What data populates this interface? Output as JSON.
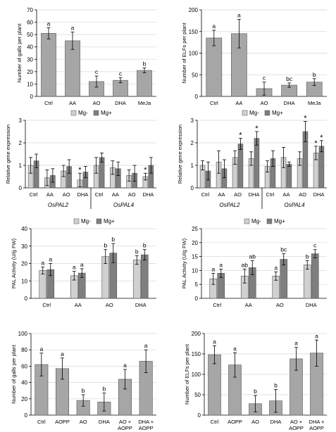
{
  "colors": {
    "bar": "#a6a6a6",
    "light": "#d0d0d0",
    "dark": "#7f7f7f",
    "axis": "#000000",
    "grid": "#d9d9d9"
  },
  "chart_data": [
    {
      "type": "bar",
      "ylabel": "Number of galls per plant",
      "categories": [
        "Ctrl",
        "AA",
        "AO",
        "DHA",
        "MeJa"
      ],
      "ylim": [
        0,
        70
      ],
      "yticks": [
        0,
        10,
        20,
        30,
        40,
        50,
        60,
        70
      ],
      "grid": true,
      "series": [
        {
          "values": [
            51,
            45,
            12,
            13,
            21
          ],
          "errors": [
            4.5,
            7,
            4.5,
            2,
            2
          ],
          "letters": [
            "a",
            "a",
            "c",
            "c",
            "b"
          ]
        }
      ]
    },
    {
      "type": "bar",
      "ylabel": "Number of ELFs per plant",
      "categories": [
        "Ctrl",
        "AA",
        "AO",
        "DHA",
        "MeJa"
      ],
      "ylim": [
        0,
        200
      ],
      "yticks": [
        0,
        50,
        100,
        150,
        200
      ],
      "grid": true,
      "series": [
        {
          "values": [
            135,
            145,
            18,
            26,
            33
          ],
          "errors": [
            18,
            33,
            15,
            5,
            8
          ],
          "letters": [
            "a",
            "a",
            "c",
            "bc",
            "b"
          ]
        }
      ]
    },
    {
      "type": "bar",
      "ylabel": "Relative gene expression",
      "categories": [
        "Ctrl",
        "AA",
        "AO",
        "DHA",
        "Ctrl",
        "AA",
        "AO",
        "DHA"
      ],
      "groups": [
        {
          "label": "OsPAL2",
          "span": [
            0,
            3
          ]
        },
        {
          "label": "OsPAL4",
          "span": [
            4,
            7
          ]
        }
      ],
      "ylim": [
        0,
        3
      ],
      "yticks": [
        0,
        1,
        2,
        3
      ],
      "grid": true,
      "legend": "top-center",
      "series": [
        {
          "name": "Mg-",
          "values": [
            1.0,
            0.45,
            0.75,
            0.35,
            1.0,
            0.9,
            0.55,
            0.5
          ],
          "errors": [
            0.35,
            0.35,
            0.25,
            0.3,
            0.35,
            0.3,
            0.25,
            0.15
          ],
          "stars": [
            false,
            false,
            false,
            true,
            false,
            false,
            false,
            true
          ]
        },
        {
          "name": "Mg+",
          "values": [
            1.2,
            0.55,
            0.95,
            0.7,
            1.35,
            0.85,
            0.65,
            1.0
          ],
          "errors": [
            0.3,
            0.3,
            0.3,
            0.25,
            0.2,
            0.3,
            0.35,
            0.35
          ],
          "stars": [
            false,
            false,
            false,
            false,
            false,
            false,
            false,
            false
          ]
        }
      ]
    },
    {
      "type": "bar",
      "ylabel": "Relative gene expression",
      "categories": [
        "Ctrl",
        "AA",
        "AO",
        "DHA",
        "Ctrl",
        "AA",
        "AO",
        "DHA"
      ],
      "groups": [
        {
          "label": "OsPAL2",
          "span": [
            0,
            3
          ]
        },
        {
          "label": "OsPAL4",
          "span": [
            4,
            7
          ]
        }
      ],
      "ylim": [
        0,
        3
      ],
      "yticks": [
        0,
        1,
        2,
        3
      ],
      "grid": true,
      "legend": "top-center",
      "series": [
        {
          "name": "Mg-",
          "values": [
            1.0,
            1.15,
            1.35,
            1.3,
            0.95,
            1.35,
            1.3,
            1.55
          ],
          "errors": [
            0.2,
            0.5,
            0.3,
            0.3,
            0.25,
            0.45,
            0.3,
            0.3
          ],
          "stars": [
            false,
            false,
            false,
            false,
            false,
            false,
            false,
            true
          ]
        },
        {
          "name": "Mg+",
          "values": [
            0.75,
            0.85,
            1.95,
            2.2,
            1.3,
            1.05,
            2.5,
            1.85
          ],
          "errors": [
            0.4,
            0.4,
            0.25,
            0.3,
            0.35,
            0.1,
            0.45,
            0.25
          ],
          "stars": [
            false,
            false,
            true,
            true,
            false,
            false,
            true,
            true
          ]
        }
      ]
    },
    {
      "type": "bar",
      "ylabel": "PAL Activity (U/g FW)",
      "categories": [
        "Ctrl",
        "AA",
        "AO",
        "DHA"
      ],
      "ylim": [
        0,
        40
      ],
      "yticks": [
        0,
        10,
        20,
        30,
        40
      ],
      "grid": true,
      "legend": "top-center",
      "series": [
        {
          "name": "Mg-",
          "values": [
            16,
            13,
            24,
            22
          ],
          "errors": [
            2,
            2.5,
            4,
            2.5
          ],
          "letters": [
            "a",
            "a",
            "b",
            "b"
          ]
        },
        {
          "name": "Mg+",
          "values": [
            16.5,
            14.5,
            26,
            25
          ],
          "errors": [
            3.5,
            2.5,
            5.5,
            3
          ],
          "letters": [
            "a",
            "a",
            "b",
            "b"
          ]
        }
      ]
    },
    {
      "type": "bar",
      "ylabel": "PAL Activity (U/g FW)",
      "categories": [
        "Ctrl",
        "AA",
        "AO",
        "DHA"
      ],
      "ylim": [
        0,
        25
      ],
      "yticks": [
        0,
        5,
        10,
        15,
        20,
        25
      ],
      "grid": true,
      "legend": "top-center",
      "series": [
        {
          "name": "Mg-",
          "values": [
            7,
            8,
            8,
            12
          ],
          "errors": [
            2,
            2.5,
            1.5,
            1.5
          ],
          "letters": [
            "a",
            "ab",
            "a",
            "b"
          ]
        },
        {
          "name": "Mg+",
          "values": [
            9,
            11,
            14,
            16
          ],
          "errors": [
            1.5,
            2.5,
            2,
            1.5
          ],
          "letters": [
            "a",
            "ab",
            "bc",
            "c"
          ]
        }
      ]
    },
    {
      "type": "bar",
      "ylabel": "Number of galls per plant",
      "categories": [
        "Ctrl",
        "AOPP",
        "AO",
        "DHA",
        "AO +\nAOPP",
        "DHA +\nAOPP"
      ],
      "ylim": [
        0,
        100
      ],
      "yticks": [
        0,
        20,
        40,
        60,
        80,
        100
      ],
      "grid": true,
      "series": [
        {
          "values": [
            62,
            57,
            18,
            16,
            44,
            66
          ],
          "errors": [
            14,
            13,
            7,
            11,
            12,
            14
          ],
          "letters": [
            "a",
            "a",
            "b",
            "b",
            "a",
            "a"
          ]
        }
      ]
    },
    {
      "type": "bar",
      "ylabel": "Number of ELFs per plant",
      "categories": [
        "Ctrl",
        "AOPP",
        "AO",
        "DHA",
        "AO +\nAOPP",
        "DHA +\nAOPP"
      ],
      "ylim": [
        0,
        200
      ],
      "yticks": [
        0,
        50,
        100,
        150,
        200
      ],
      "grid": true,
      "series": [
        {
          "values": [
            148,
            123,
            28,
            35,
            138,
            152
          ],
          "errors": [
            22,
            30,
            20,
            28,
            28,
            32
          ],
          "letters": [
            "a",
            "a",
            "b",
            "b",
            "a",
            "a"
          ]
        }
      ]
    }
  ]
}
